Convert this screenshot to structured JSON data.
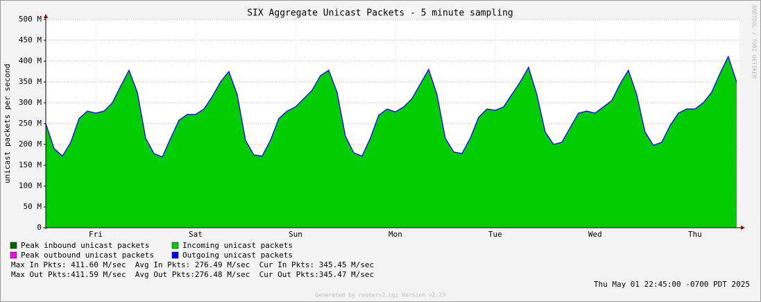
{
  "chart_data": {
    "type": "area",
    "title": "SIX Aggregate Unicast Packets - 5 minute sampling",
    "y_label": "unicast packets per second",
    "side_label": "RRDTOOL / TOBI OETIKER",
    "x": [
      0,
      2,
      4,
      6,
      8,
      10,
      12,
      14,
      16,
      18,
      20,
      22,
      24,
      26,
      28,
      30,
      32,
      34,
      36,
      38,
      40,
      42,
      44,
      46,
      48,
      50,
      52,
      54,
      56,
      58,
      60,
      62,
      64,
      66,
      68,
      70,
      72,
      74,
      76,
      78,
      80,
      82,
      84,
      86,
      88,
      90,
      92,
      94,
      96,
      98,
      100,
      102,
      104,
      106,
      108,
      110,
      112,
      114,
      116,
      118,
      120,
      122,
      124,
      126,
      128,
      130,
      132,
      134,
      136,
      138,
      140,
      142,
      144,
      146,
      148,
      150,
      152,
      154,
      156,
      158,
      160,
      162,
      164,
      166
    ],
    "xlim": [
      0,
      166.7
    ],
    "xticks": [
      {
        "value": 12,
        "label": "Fri"
      },
      {
        "value": 36,
        "label": "Sat"
      },
      {
        "value": 60,
        "label": "Sun"
      },
      {
        "value": 84,
        "label": "Mon"
      },
      {
        "value": 108,
        "label": "Tue"
      },
      {
        "value": 132,
        "label": "Wed"
      },
      {
        "value": 156,
        "label": "Thu"
      }
    ],
    "ylim": [
      0,
      500
    ],
    "yticks": [
      0,
      {
        "value": 50,
        "label": "50 M"
      },
      {
        "value": 100,
        "label": "100 M"
      },
      {
        "value": 150,
        "label": "150 M"
      },
      {
        "value": 200,
        "label": "200 M"
      },
      {
        "value": 250,
        "label": "250 M"
      },
      {
        "value": 300,
        "label": "300 M"
      },
      {
        "value": 350,
        "label": "350 M"
      },
      {
        "value": 400,
        "label": "400 M"
      },
      {
        "value": 450,
        "label": "450 M"
      },
      {
        "value": 500,
        "label": "500 M"
      }
    ],
    "grid": true,
    "series": [
      {
        "name": "Peak inbound unicast packets",
        "color": "#006600",
        "style": "area",
        "values": [
          250,
          190,
          172,
          205,
          262,
          280,
          275,
          280,
          300,
          340,
          378,
          325,
          215,
          178,
          170,
          215,
          258,
          272,
          272,
          285,
          315,
          350,
          375,
          320,
          210,
          175,
          172,
          210,
          262,
          280,
          290,
          310,
          330,
          365,
          378,
          325,
          220,
          180,
          172,
          215,
          270,
          285,
          278,
          290,
          310,
          345,
          380,
          320,
          215,
          182,
          178,
          215,
          265,
          285,
          282,
          290,
          320,
          350,
          385,
          320,
          230,
          200,
          205,
          240,
          275,
          280,
          275,
          290,
          305,
          345,
          378,
          320,
          230,
          198,
          205,
          245,
          275,
          285,
          285,
          300,
          325,
          370,
          411,
          350
        ]
      },
      {
        "name": "Incoming unicast packets",
        "color": "#00cc00",
        "style": "area",
        "values": [
          250,
          190,
          172,
          205,
          262,
          280,
          275,
          280,
          300,
          340,
          378,
          325,
          215,
          178,
          170,
          215,
          258,
          272,
          272,
          285,
          315,
          350,
          375,
          320,
          210,
          175,
          172,
          210,
          262,
          280,
          290,
          310,
          330,
          365,
          378,
          325,
          220,
          180,
          172,
          215,
          270,
          285,
          278,
          290,
          310,
          345,
          380,
          320,
          215,
          182,
          178,
          215,
          265,
          285,
          282,
          290,
          320,
          350,
          385,
          320,
          230,
          200,
          205,
          240,
          275,
          280,
          275,
          290,
          305,
          345,
          378,
          320,
          230,
          198,
          205,
          245,
          275,
          285,
          285,
          300,
          325,
          370,
          411,
          350
        ]
      },
      {
        "name": "Peak outbound unicast packets",
        "color": "#ff00ff",
        "style": "line",
        "values": [
          250,
          190,
          172,
          205,
          262,
          280,
          275,
          280,
          300,
          340,
          378,
          325,
          215,
          178,
          170,
          215,
          258,
          272,
          272,
          285,
          315,
          350,
          375,
          320,
          210,
          175,
          172,
          210,
          262,
          280,
          290,
          310,
          330,
          365,
          378,
          325,
          220,
          180,
          172,
          215,
          270,
          285,
          278,
          290,
          310,
          345,
          380,
          320,
          215,
          182,
          178,
          215,
          265,
          285,
          282,
          290,
          320,
          350,
          385,
          320,
          230,
          200,
          205,
          240,
          275,
          280,
          275,
          290,
          305,
          345,
          378,
          320,
          230,
          198,
          205,
          245,
          275,
          285,
          285,
          300,
          325,
          370,
          411,
          350
        ]
      },
      {
        "name": "Outgoing unicast packets",
        "color": "#0000ff",
        "style": "line",
        "values": [
          250,
          190,
          172,
          205,
          262,
          280,
          275,
          280,
          300,
          340,
          378,
          325,
          215,
          178,
          170,
          215,
          258,
          272,
          272,
          285,
          315,
          350,
          375,
          320,
          210,
          175,
          172,
          210,
          262,
          280,
          290,
          310,
          330,
          365,
          378,
          325,
          220,
          180,
          172,
          215,
          270,
          285,
          278,
          290,
          310,
          345,
          380,
          320,
          215,
          182,
          178,
          215,
          265,
          285,
          282,
          290,
          320,
          350,
          385,
          320,
          230,
          200,
          205,
          240,
          275,
          280,
          275,
          290,
          305,
          345,
          378,
          320,
          230,
          198,
          205,
          245,
          275,
          285,
          285,
          300,
          325,
          370,
          411,
          350
        ]
      }
    ],
    "stats": [
      "Max In Pkts: 411.60 M/sec  Avg In Pkts: 276.49 M/sec  Cur In Pkts: 345.45 M/sec",
      "Max Out Pkts:411.59 M/sec  Avg Out Pkts:276.48 M/sec  Cur Out Pkts:345.47 M/sec"
    ],
    "timestamp": "Thu May 01 22:45:00 -0700 PDT 2025",
    "footer": "Generated by routers2.cgi Version v2.23"
  }
}
